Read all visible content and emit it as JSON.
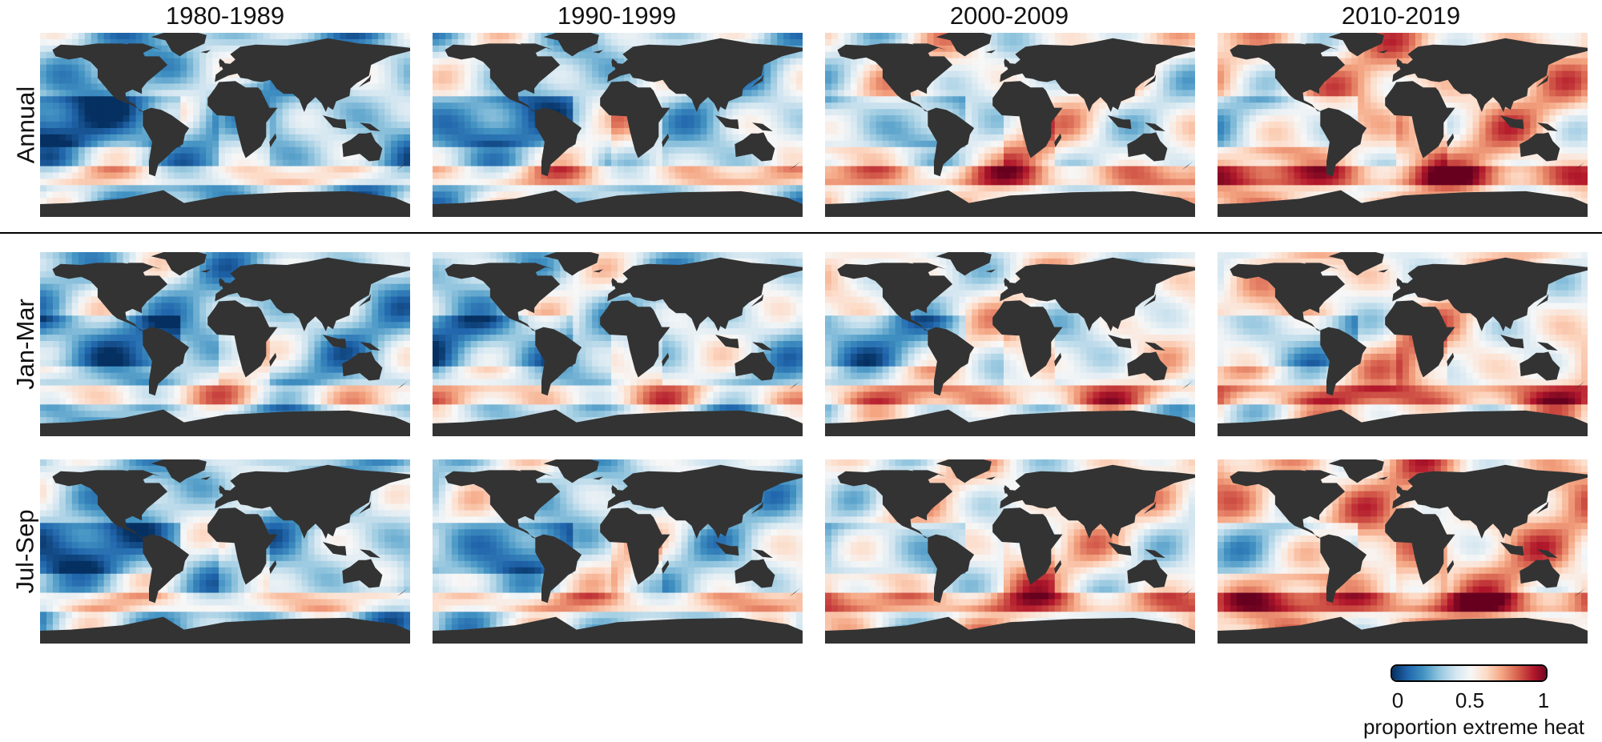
{
  "columns": [
    "1980-1989",
    "1990-1999",
    "2000-2009",
    "2010-2019"
  ],
  "rows": [
    "Annual",
    "Jan-Mar",
    "Jul-Sep"
  ],
  "colorbar": {
    "ticks": [
      "0",
      "0.5",
      "1"
    ],
    "label": "proportion extreme heat",
    "colors": [
      "#053061",
      "#2166ac",
      "#4393c3",
      "#92c5de",
      "#d1e5f0",
      "#f7f7f7",
      "#fddbc7",
      "#f4a582",
      "#d6604d",
      "#b2182b",
      "#67001f"
    ]
  },
  "colors": {
    "land": "#333333",
    "separator": "#000000"
  },
  "panel_levels": {
    "Annual": [
      0.3,
      0.38,
      0.5,
      0.6
    ],
    "Jan-Mar": [
      0.34,
      0.38,
      0.47,
      0.55
    ],
    "Jul-Sep": [
      0.33,
      0.4,
      0.52,
      0.62
    ]
  }
}
